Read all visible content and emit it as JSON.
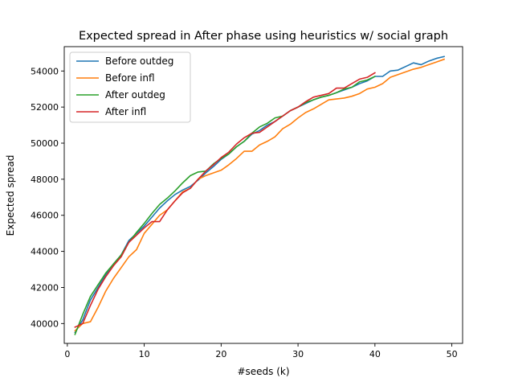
{
  "chart_data": {
    "type": "line",
    "title": "Expected spread in After phase using heuristics w/ social graph",
    "xlabel": "#seeds (k)",
    "ylabel": "Expected spread",
    "xlim": [
      -0.4,
      51.4
    ],
    "ylim": [
      38900,
      55350
    ],
    "x_ticks": [
      0,
      10,
      20,
      30,
      40,
      50
    ],
    "y_ticks": [
      40000,
      42000,
      44000,
      46000,
      48000,
      50000,
      52000,
      54000
    ],
    "grid": false,
    "legend_position": "top-left",
    "series": [
      {
        "name": "Before outdeg",
        "color": "#1f77b4",
        "x": [
          1,
          2,
          3,
          4,
          5,
          6,
          7,
          8,
          9,
          10,
          11,
          12,
          13,
          14,
          15,
          16,
          17,
          18,
          19,
          20,
          21,
          22,
          23,
          24,
          25,
          26,
          27,
          28,
          29,
          30,
          31,
          32,
          33,
          34,
          35,
          36,
          37,
          38,
          39,
          40,
          41,
          42,
          43,
          44,
          45,
          46,
          47,
          48,
          49
        ],
        "y": [
          39500,
          40200,
          41300,
          42000,
          42700,
          43300,
          43800,
          44600,
          45000,
          45400,
          45900,
          46400,
          46800,
          47150,
          47400,
          47600,
          47950,
          48350,
          48700,
          49100,
          49400,
          49800,
          50100,
          50500,
          50700,
          51000,
          51200,
          51500,
          51800,
          52000,
          52200,
          52400,
          52550,
          52650,
          52800,
          52950,
          53100,
          53300,
          53450,
          53700,
          53700,
          54000,
          54050,
          54250,
          54450,
          54350,
          54550,
          54700,
          54800
        ]
      },
      {
        "name": "Before infl",
        "color": "#ff7f0e",
        "x": [
          1,
          2,
          3,
          4,
          5,
          6,
          7,
          8,
          9,
          10,
          11,
          12,
          13,
          14,
          15,
          16,
          17,
          18,
          19,
          20,
          21,
          22,
          23,
          24,
          25,
          26,
          27,
          28,
          29,
          30,
          31,
          32,
          33,
          34,
          35,
          36,
          37,
          38,
          39,
          40,
          41,
          42,
          43,
          44,
          45,
          46,
          47,
          48,
          49
        ],
        "y": [
          39600,
          40000,
          40100,
          40900,
          41800,
          42500,
          43100,
          43700,
          44100,
          45000,
          45500,
          46000,
          46300,
          46800,
          47300,
          47500,
          48000,
          48200,
          48350,
          48500,
          48800,
          49150,
          49550,
          49550,
          49900,
          50100,
          50350,
          50800,
          51050,
          51400,
          51700,
          51900,
          52150,
          52400,
          52450,
          52500,
          52600,
          52750,
          53000,
          53100,
          53300,
          53650,
          53800,
          53950,
          54100,
          54200,
          54350,
          54500,
          54650
        ]
      },
      {
        "name": "After outdeg",
        "color": "#2ca02c",
        "x": [
          1,
          2,
          3,
          4,
          5,
          6,
          7,
          8,
          9,
          10,
          11,
          12,
          13,
          14,
          15,
          16,
          17,
          18,
          19,
          20,
          21,
          22,
          23,
          24,
          25,
          26,
          27,
          28,
          29,
          30,
          31,
          32,
          33,
          34,
          35,
          36,
          37,
          38,
          39,
          40
        ],
        "y": [
          39400,
          40500,
          41500,
          42150,
          42800,
          43300,
          43800,
          44500,
          45050,
          45550,
          46100,
          46600,
          46950,
          47350,
          47800,
          48200,
          48400,
          48450,
          48850,
          49150,
          49400,
          49800,
          50100,
          50550,
          50900,
          51100,
          51400,
          51500,
          51800,
          52000,
          52250,
          52400,
          52550,
          52650,
          52800,
          53000,
          53100,
          53400,
          53500,
          53700
        ]
      },
      {
        "name": "After infl",
        "color": "#d62728",
        "x": [
          1,
          2,
          3,
          4,
          5,
          6,
          7,
          8,
          9,
          10,
          11,
          12,
          13,
          14,
          15,
          16,
          17,
          18,
          19,
          20,
          21,
          22,
          23,
          24,
          25,
          26,
          27,
          28,
          29,
          30,
          31,
          32,
          33,
          34,
          35,
          36,
          37,
          38,
          39,
          40
        ],
        "y": [
          39800,
          40000,
          41000,
          41900,
          42600,
          43200,
          43700,
          44500,
          44900,
          45300,
          45650,
          45650,
          46300,
          46800,
          47250,
          47500,
          48000,
          48450,
          48800,
          49200,
          49500,
          49950,
          50300,
          50550,
          50600,
          50900,
          51200,
          51500,
          51800,
          52000,
          52300,
          52550,
          52650,
          52750,
          53050,
          53050,
          53300,
          53550,
          53650,
          53900
        ]
      }
    ]
  }
}
